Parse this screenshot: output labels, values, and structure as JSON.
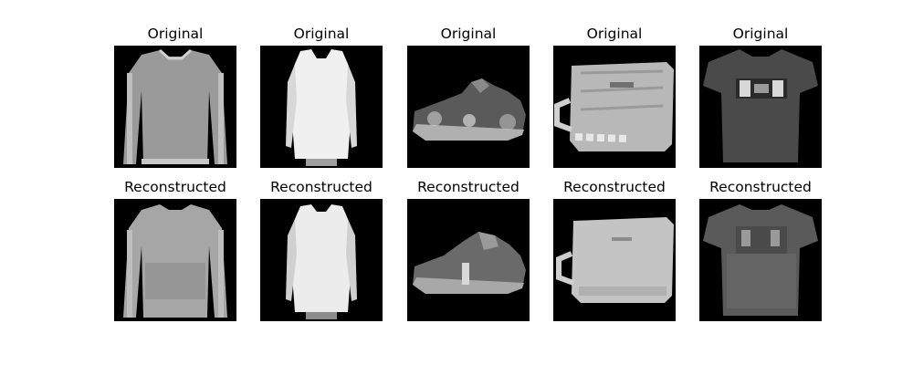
{
  "figure": {
    "rows": [
      {
        "row": "original",
        "items": [
          {
            "title": "Original",
            "item": "long-sleeve-shirt"
          },
          {
            "title": "Original",
            "item": "dress"
          },
          {
            "title": "Original",
            "item": "sneaker"
          },
          {
            "title": "Original",
            "item": "bag"
          },
          {
            "title": "Original",
            "item": "t-shirt"
          }
        ]
      },
      {
        "row": "reconstructed",
        "items": [
          {
            "title": "Reconstructed",
            "item": "long-sleeve-shirt"
          },
          {
            "title": "Reconstructed",
            "item": "dress"
          },
          {
            "title": "Reconstructed",
            "item": "sneaker"
          },
          {
            "title": "Reconstructed",
            "item": "bag"
          },
          {
            "title": "Reconstructed",
            "item": "t-shirt"
          }
        ]
      }
    ]
  }
}
